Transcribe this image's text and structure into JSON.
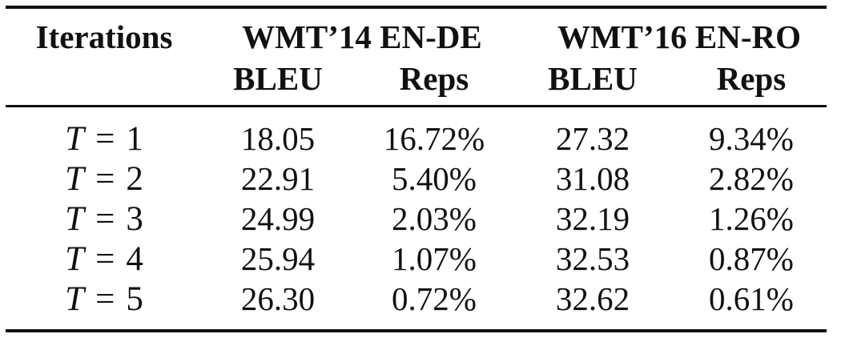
{
  "table": {
    "headers": {
      "iterations": "Iterations",
      "group1": "WMT’14 EN-DE",
      "group2": "WMT’16 EN-RO",
      "bleu": "BLEU",
      "reps": "Reps"
    },
    "rows": [
      {
        "var": "T",
        "op": "=",
        "n": "1",
        "de_bleu": "18.05",
        "de_reps": "16.72%",
        "ro_bleu": "27.32",
        "ro_reps": "9.34%"
      },
      {
        "var": "T",
        "op": "=",
        "n": "2",
        "de_bleu": "22.91",
        "de_reps": "5.40%",
        "ro_bleu": "31.08",
        "ro_reps": "2.82%"
      },
      {
        "var": "T",
        "op": "=",
        "n": "3",
        "de_bleu": "24.99",
        "de_reps": "2.03%",
        "ro_bleu": "32.19",
        "ro_reps": "1.26%"
      },
      {
        "var": "T",
        "op": "=",
        "n": "4",
        "de_bleu": "25.94",
        "de_reps": "1.07%",
        "ro_bleu": "32.53",
        "ro_reps": "0.87%"
      },
      {
        "var": "T",
        "op": "=",
        "n": "5",
        "de_bleu": "26.30",
        "de_reps": "0.72%",
        "ro_bleu": "32.62",
        "ro_reps": "0.61%"
      }
    ]
  }
}
